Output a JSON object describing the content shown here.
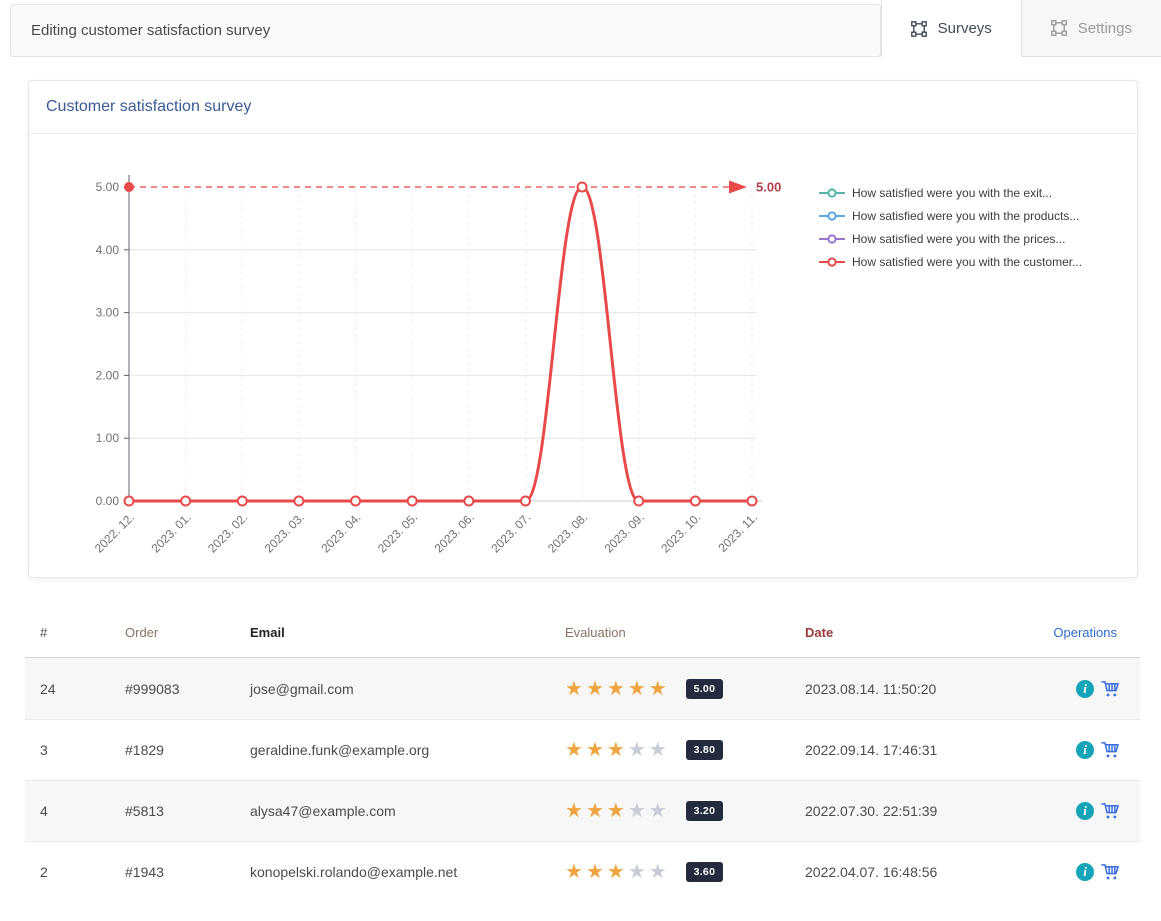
{
  "page": {
    "title": "Editing customer satisfaction survey"
  },
  "tabs": [
    {
      "label": "Surveys",
      "active": true
    },
    {
      "label": "Settings",
      "active": false
    }
  ],
  "panel": {
    "title": "Customer satisfaction survey"
  },
  "chart_data": {
    "type": "line",
    "title": "Customer satisfaction survey",
    "categories": [
      "2022. 12.",
      "2023. 01.",
      "2023. 02.",
      "2023. 03.",
      "2023. 04.",
      "2023. 05.",
      "2023. 06.",
      "2023. 07.",
      "2023. 08.",
      "2023. 09.",
      "2023. 10.",
      "2023. 11."
    ],
    "ylim": [
      0,
      5
    ],
    "yticks": [
      {
        "value": 0,
        "label": "0.00"
      },
      {
        "value": 1,
        "label": "1.00"
      },
      {
        "value": 2,
        "label": "2.00"
      },
      {
        "value": 3,
        "label": "3.00"
      },
      {
        "value": 4,
        "label": "4.00"
      },
      {
        "value": 5,
        "label": "5.00"
      }
    ],
    "grid": "horizontal solid, vertical dashed",
    "legend_position": "right",
    "series": [
      {
        "name": "How satisfied were you with the exit...",
        "color": "#56b4ab",
        "values": []
      },
      {
        "name": "How satisfied were you with the products...",
        "color": "#5aa7e0",
        "values": []
      },
      {
        "name": "How satisfied were you with the prices...",
        "color": "#9575cd",
        "values": []
      },
      {
        "name": "How satisfied were you with the customer...",
        "color": "#e84a4a",
        "values": [
          0,
          0,
          0,
          0,
          0,
          0,
          0,
          0,
          5,
          0,
          0,
          0
        ]
      }
    ],
    "markline": {
      "value": 5,
      "label": "5.00",
      "color": "#e84a4a",
      "label_color": "#b0414b",
      "style": "dashed-arrow"
    }
  },
  "table": {
    "headers": [
      {
        "label": "#",
        "color": "#4c4c4c"
      },
      {
        "label": "Order",
        "color": "#8a7365"
      },
      {
        "label": "Email",
        "color": "#222222"
      },
      {
        "label": "Evaluation",
        "color": "#8a7365"
      },
      {
        "label": "Date",
        "color": "#9c3a3a"
      },
      {
        "label": "Operations",
        "color": "#2e6bd2"
      }
    ],
    "rows": [
      {
        "num": "24",
        "order": "#999083",
        "email": "jose@gmail.com",
        "stars": 5,
        "score": "5.00",
        "date": "2023.08.14. 11:50:20"
      },
      {
        "num": "3",
        "order": "#1829",
        "email": "geraldine.funk@example.org",
        "stars": 3,
        "score": "3.80",
        "date": "2022.09.14. 17:46:31"
      },
      {
        "num": "4",
        "order": "#5813",
        "email": "alysa47@example.com",
        "stars": 3,
        "score": "3.20",
        "date": "2022.07.30. 22:51:39"
      },
      {
        "num": "2",
        "order": "#1943",
        "email": "konopelski.rolando@example.net",
        "stars": 3,
        "score": "3.60",
        "date": "2022.04.07. 16:48:56"
      }
    ],
    "operations_icons": [
      "info-icon",
      "cart-icon"
    ]
  },
  "colors": {
    "star_filled": "#efa440",
    "star_empty": "#c8ccd4",
    "badge_bg": "#242b3e",
    "info_icon": "#16a5b8",
    "cart_icon": "#3a6fe0",
    "axis_text": "#6d7177",
    "panel_title": "#3a5a96"
  }
}
